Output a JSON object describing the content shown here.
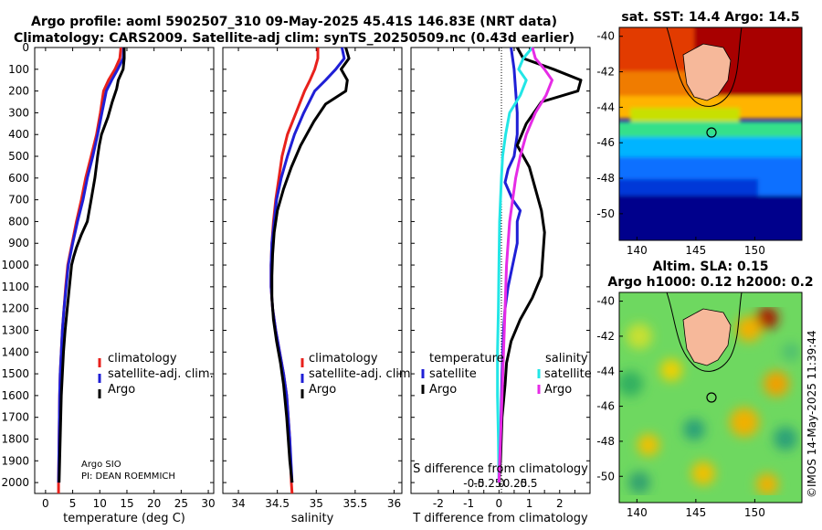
{
  "header": {
    "line1": "Argo profile: aoml 5902507_310 09-May-2025 45.41S 146.83E (NRT data)",
    "line2": "Climatology: CARS2009. Satellite-adj clim: synTS_20250509.nc (0.43d earlier)"
  },
  "watermark": "©IMOS 14-May-2025 11:39:44",
  "colors": {
    "red": "#e8211c",
    "blue": "#1f1fd6",
    "black": "#000000",
    "cyan": "#22e6e6",
    "magenta": "#e62be6"
  },
  "chart_data": [
    {
      "id": "temperature",
      "type": "line",
      "xlabel": "temperature (deg C)",
      "xlim": [
        -2,
        31
      ],
      "ylim": [
        0,
        2050
      ],
      "xticks": [
        "0",
        "5",
        "10",
        "15",
        "20",
        "25",
        "30"
      ],
      "yticks": [
        "0",
        "100",
        "200",
        "300",
        "400",
        "500",
        "600",
        "700",
        "800",
        "900",
        "1000",
        "1100",
        "1200",
        "1300",
        "1400",
        "1500",
        "1600",
        "1700",
        "1800",
        "1900",
        "2000"
      ],
      "legend": [
        "climatology",
        "satellite-adj. clim.",
        "Argo"
      ],
      "annotation_1": "Argo SIO",
      "annotation_2": "PI: DEAN ROEMMICH",
      "series": [
        {
          "name": "climatology",
          "color": "red",
          "x": [
            13.9,
            13.7,
            12.8,
            11.6,
            10.7,
            10.1,
            9.4,
            8.4,
            7.4,
            6.6,
            5.7,
            4.9,
            4.1,
            3.7,
            3.4,
            3.1,
            2.9,
            2.7,
            2.6,
            2.5,
            2.4,
            2.4
          ],
          "y": [
            0,
            50,
            100,
            150,
            200,
            300,
            400,
            500,
            600,
            700,
            800,
            900,
            1000,
            1100,
            1200,
            1300,
            1400,
            1500,
            1600,
            1800,
            2000,
            2050
          ]
        },
        {
          "name": "satellite-adj. clim.",
          "color": "blue",
          "x": [
            14.4,
            14.3,
            13.3,
            12.2,
            11.2,
            10.4,
            9.6,
            8.7,
            7.7,
            6.9,
            5.9,
            5.0,
            4.2,
            3.8,
            3.4,
            3.1,
            2.9,
            2.7,
            2.6,
            2.5,
            2.4
          ],
          "y": [
            0,
            50,
            100,
            150,
            200,
            300,
            400,
            500,
            600,
            700,
            800,
            900,
            1000,
            1100,
            1200,
            1300,
            1400,
            1500,
            1600,
            1800,
            2000
          ]
        },
        {
          "name": "Argo",
          "color": "black",
          "x": [
            14.5,
            14.5,
            14.3,
            13.4,
            13.1,
            12.3,
            11.5,
            10.3,
            9.9,
            9.6,
            9.1,
            8.4,
            7.7,
            6.6,
            5.7,
            5.2,
            4.8,
            4.4,
            4.0,
            3.6,
            3.3,
            3.1,
            2.9,
            2.8,
            2.7,
            2.6,
            2.5
          ],
          "y": [
            0,
            50,
            100,
            150,
            190,
            250,
            320,
            400,
            450,
            500,
            600,
            700,
            800,
            860,
            920,
            960,
            1000,
            1100,
            1200,
            1300,
            1400,
            1500,
            1600,
            1700,
            1800,
            1900,
            2000
          ]
        }
      ]
    },
    {
      "id": "salinity",
      "type": "line",
      "xlabel": "salinity",
      "xlim": [
        33.8,
        36.1
      ],
      "ylim": [
        0,
        2050
      ],
      "xticks": [
        "34",
        "34.5",
        "35",
        "35.5",
        "36"
      ],
      "legend": [
        "climatology",
        "satellite-adj. clim.",
        "Argo"
      ],
      "series": [
        {
          "name": "climatology",
          "color": "red",
          "x": [
            35.02,
            35.02,
            34.98,
            34.92,
            34.85,
            34.74,
            34.63,
            34.56,
            34.52,
            34.48,
            34.45,
            34.43,
            34.42,
            34.42,
            34.44,
            34.48,
            34.53,
            34.58,
            34.62,
            34.66,
            34.68,
            34.69
          ],
          "y": [
            0,
            50,
            100,
            150,
            200,
            300,
            400,
            500,
            600,
            700,
            800,
            900,
            1000,
            1100,
            1200,
            1300,
            1400,
            1500,
            1600,
            1800,
            2000,
            2050
          ]
        },
        {
          "name": "satellite-adj. clim.",
          "color": "blue",
          "x": [
            35.33,
            35.36,
            35.25,
            35.12,
            34.98,
            34.84,
            34.72,
            34.63,
            34.55,
            34.49,
            34.46,
            34.43,
            34.42,
            34.42,
            34.44,
            34.48,
            34.53,
            34.58,
            34.62,
            34.66,
            34.69
          ],
          "y": [
            0,
            50,
            100,
            150,
            200,
            300,
            400,
            500,
            600,
            700,
            800,
            900,
            1000,
            1100,
            1200,
            1300,
            1400,
            1500,
            1600,
            1800,
            2000
          ]
        },
        {
          "name": "Argo",
          "color": "black",
          "x": [
            35.38,
            35.42,
            35.32,
            35.4,
            35.38,
            35.12,
            34.97,
            34.8,
            34.68,
            34.58,
            34.5,
            34.46,
            34.44,
            34.43,
            34.43,
            34.45,
            34.49,
            34.54,
            34.58,
            34.62,
            34.66,
            34.69
          ],
          "y": [
            0,
            50,
            100,
            150,
            200,
            260,
            340,
            450,
            550,
            650,
            750,
            850,
            950,
            1050,
            1150,
            1250,
            1350,
            1450,
            1550,
            1700,
            1900,
            2000
          ]
        }
      ]
    },
    {
      "id": "difference",
      "type": "line",
      "xlabel": "T difference from climatology",
      "xlabel_top": "S difference from climatology",
      "xlim": [
        -2.9,
        3.0
      ],
      "ylim": [
        0,
        2050
      ],
      "xticks": [
        "-2",
        "-1.5",
        "-1",
        "-0.5",
        "0",
        "0.5",
        "1",
        "1.5",
        "2",
        "2.5"
      ],
      "sticks": [
        "-0.5",
        "-0.25",
        "0",
        "0.25",
        "0.5"
      ],
      "legend_temperature_title": "temperature",
      "legend_salinity_title": "salinity",
      "legend_entries": [
        "satellite",
        "Argo",
        "satellite",
        "Argo"
      ],
      "series": [
        {
          "name": "T satellite",
          "color": "blue",
          "x": [
            0.4,
            0.5,
            0.55,
            0.6,
            0.6,
            0.5,
            0.3,
            0.2,
            0.45,
            0.7,
            0.6,
            0.6,
            0.45,
            0.3,
            0.2,
            0.15,
            0.1,
            0.05,
            0.0
          ],
          "y": [
            0,
            100,
            200,
            300,
            400,
            500,
            560,
            620,
            700,
            750,
            800,
            900,
            1000,
            1100,
            1200,
            1300,
            1500,
            1800,
            2000
          ]
        },
        {
          "name": "T Argo",
          "color": "black",
          "x": [
            0.6,
            0.8,
            1.8,
            2.7,
            2.6,
            1.4,
            0.9,
            0.6,
            1.0,
            1.2,
            1.4,
            1.5,
            1.45,
            1.4,
            1.1,
            0.7,
            0.4,
            0.25,
            0.2,
            0.1,
            0.05,
            0.0
          ],
          "y": [
            0,
            50,
            100,
            150,
            200,
            250,
            350,
            450,
            550,
            650,
            750,
            850,
            950,
            1050,
            1150,
            1250,
            1350,
            1450,
            1550,
            1700,
            1900,
            2000
          ]
        },
        {
          "name": "S satellite",
          "color": "cyan",
          "x": [
            1.1,
            0.8,
            0.65,
            0.9,
            0.7,
            0.35,
            0.22,
            0.12,
            0.08,
            0.05,
            0.02,
            0.0,
            -0.02,
            -0.05,
            -0.05,
            -0.02,
            0.0
          ],
          "y": [
            0,
            50,
            100,
            150,
            220,
            300,
            400,
            500,
            600,
            700,
            800,
            1000,
            1200,
            1400,
            1600,
            1800,
            2000
          ]
        },
        {
          "name": "S Argo",
          "color": "magenta",
          "x": [
            1.1,
            1.2,
            1.5,
            1.75,
            1.55,
            1.2,
            0.9,
            0.7,
            0.55,
            0.45,
            0.35,
            0.25,
            0.2,
            0.15,
            0.1,
            0.05,
            0.0
          ],
          "y": [
            0,
            50,
            100,
            150,
            220,
            300,
            400,
            500,
            600,
            700,
            800,
            1000,
            1200,
            1400,
            1600,
            1800,
            2000
          ]
        }
      ]
    },
    {
      "id": "sst-map",
      "type": "heatmap",
      "title": "sat. SST: 14.4  Argo: 14.5",
      "xticks": [
        "140",
        "145",
        "150"
      ],
      "yticks": [
        "-40",
        "-42",
        "-44",
        "-46",
        "-48",
        "-50"
      ],
      "xlim": [
        138.5,
        154.0
      ],
      "ylim": [
        -51.5,
        -39.5
      ],
      "argo_position": {
        "lon": 146.83,
        "lat": -45.41
      }
    },
    {
      "id": "sla-map",
      "type": "heatmap",
      "title_line1": "Altim. SLA: 0.15",
      "title_line2": "Argo h1000: 0.12  h2000: 0.2",
      "xticks": [
        "140",
        "145",
        "150"
      ],
      "yticks": [
        "-40",
        "-42",
        "-44",
        "-46",
        "-48",
        "-50"
      ],
      "xlim": [
        138.5,
        154.0
      ],
      "ylim": [
        -51.5,
        -39.5
      ],
      "argo_position": {
        "lon": 146.83,
        "lat": -45.41
      }
    }
  ]
}
